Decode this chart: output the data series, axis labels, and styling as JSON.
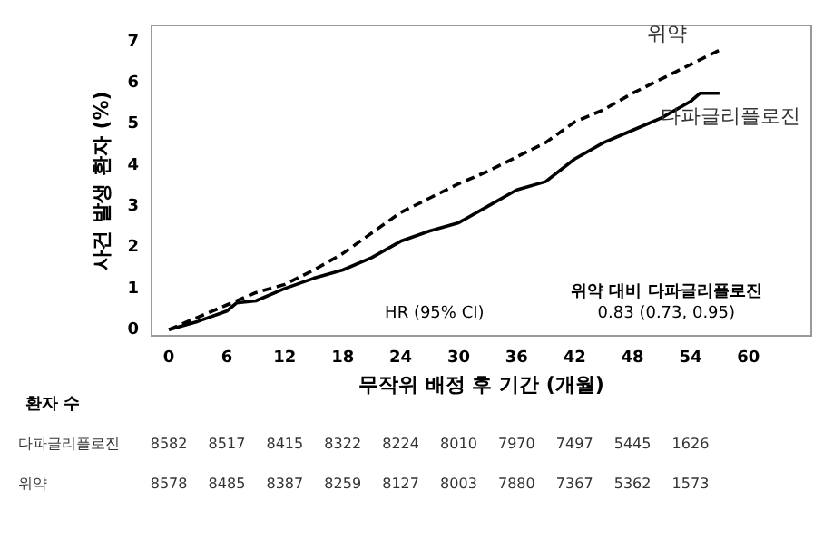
{
  "chart_data": {
    "type": "line",
    "xlabel": "무작위 배정 후 기간 (개월)",
    "ylabel": "사건 발생 환자 (%)",
    "xlim": [
      -1.8,
      66.5
    ],
    "xticks": [
      0,
      6,
      12,
      18,
      24,
      30,
      36,
      42,
      48,
      54,
      60
    ],
    "ylim": [
      -0.15,
      7.4
    ],
    "yticks": [
      0,
      1,
      2,
      3,
      4,
      5,
      6,
      7
    ],
    "grid": false,
    "legend": false,
    "marker": "none",
    "series": [
      {
        "name": "위약",
        "color": "#000000",
        "line_style": "dashed",
        "x": [
          0,
          3,
          6,
          9,
          12,
          15,
          18,
          21,
          24,
          27,
          30,
          33,
          36,
          39,
          42,
          45,
          48,
          51,
          54,
          57
        ],
        "values": [
          0,
          0.3,
          0.6,
          0.9,
          1.1,
          1.45,
          1.85,
          2.35,
          2.85,
          3.2,
          3.55,
          3.85,
          4.2,
          4.55,
          5.05,
          5.35,
          5.75,
          6.1,
          6.45,
          6.8
        ]
      },
      {
        "name": "다파글리플로진",
        "color": "#000000",
        "line_style": "solid",
        "x": [
          0,
          3,
          6,
          7,
          9,
          12,
          15,
          18,
          21,
          24,
          27,
          30,
          33,
          36,
          39,
          42,
          45,
          48,
          51,
          54,
          55,
          57
        ],
        "values": [
          0,
          0.2,
          0.45,
          0.65,
          0.7,
          1.0,
          1.25,
          1.45,
          1.75,
          2.15,
          2.4,
          2.6,
          3.0,
          3.4,
          3.6,
          4.15,
          4.55,
          4.85,
          5.15,
          5.55,
          5.75,
          5.75
        ]
      }
    ],
    "annotations": [
      "HR (95% CI)",
      "위약 대비 다파글리플로진",
      "0.83 (0.73, 0.95)",
      "환자 수",
      "다파글리플로진 8582 8517 8415 8322 8224 8010 7970 7497 5445 1626",
      "위약 8578 8485 8387 8259 8127 8003 7880 7367 5362 1573"
    ]
  }
}
